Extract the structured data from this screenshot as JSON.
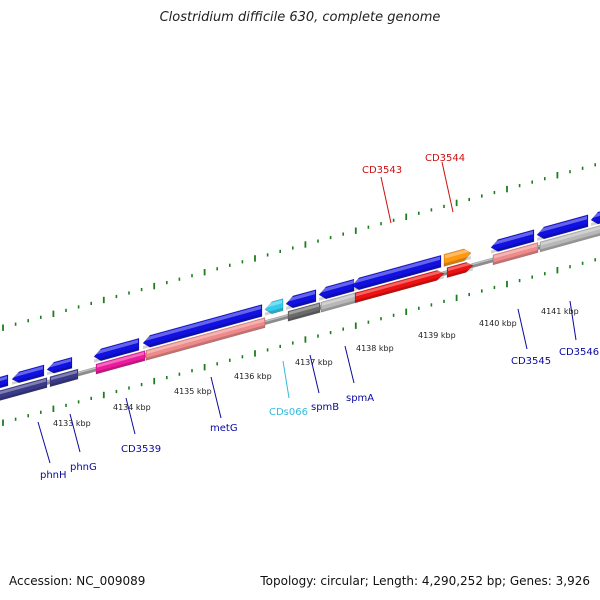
{
  "title": "Clostridium difficile 630, complete genome",
  "footer": {
    "accession": "Accession: NC_009089",
    "summary": "Topology: circular; Length: 4,290,252 bp; Genes: 3,926"
  },
  "colors": {
    "axis": "#8c8c8c",
    "tick": "#1e7d1e",
    "forward": "#1010e0",
    "dark_navy": "#3a3a8a",
    "magenta": "#ee1a9e",
    "salmon": "#ee8a8a",
    "light_gray": "#b8b8b8",
    "dark_gray": "#6a6a6a",
    "cyan": "#33ccee",
    "red": "#ee1111",
    "orange": "#ff9911"
  },
  "kbp_labels": [
    "4133 kbp",
    "4134 kbp",
    "4135 kbp",
    "4136 kbp",
    "4137 kbp",
    "4138 kbp",
    "4139 kbp",
    "4140 kbp",
    "4141 kbp"
  ],
  "gene_labels": [
    {
      "text": "phnH",
      "color": "#0a0aa0"
    },
    {
      "text": "phnG",
      "color": "#0a0aa0"
    },
    {
      "text": "CD3539",
      "color": "#0a0aa0"
    },
    {
      "text": "metG",
      "color": "#0a0aa0"
    },
    {
      "text": "CDs066",
      "color": "#33bbdd"
    },
    {
      "text": "spmB",
      "color": "#0a0aa0"
    },
    {
      "text": "spmA",
      "color": "#0a0aa0"
    },
    {
      "text": "CD3545",
      "color": "#0a0aa0"
    },
    {
      "text": "CD3546",
      "color": "#0a0aa0"
    },
    {
      "text": "CD3543",
      "color": "#cc1111"
    },
    {
      "text": "CD3544",
      "color": "#cc1111"
    }
  ]
}
